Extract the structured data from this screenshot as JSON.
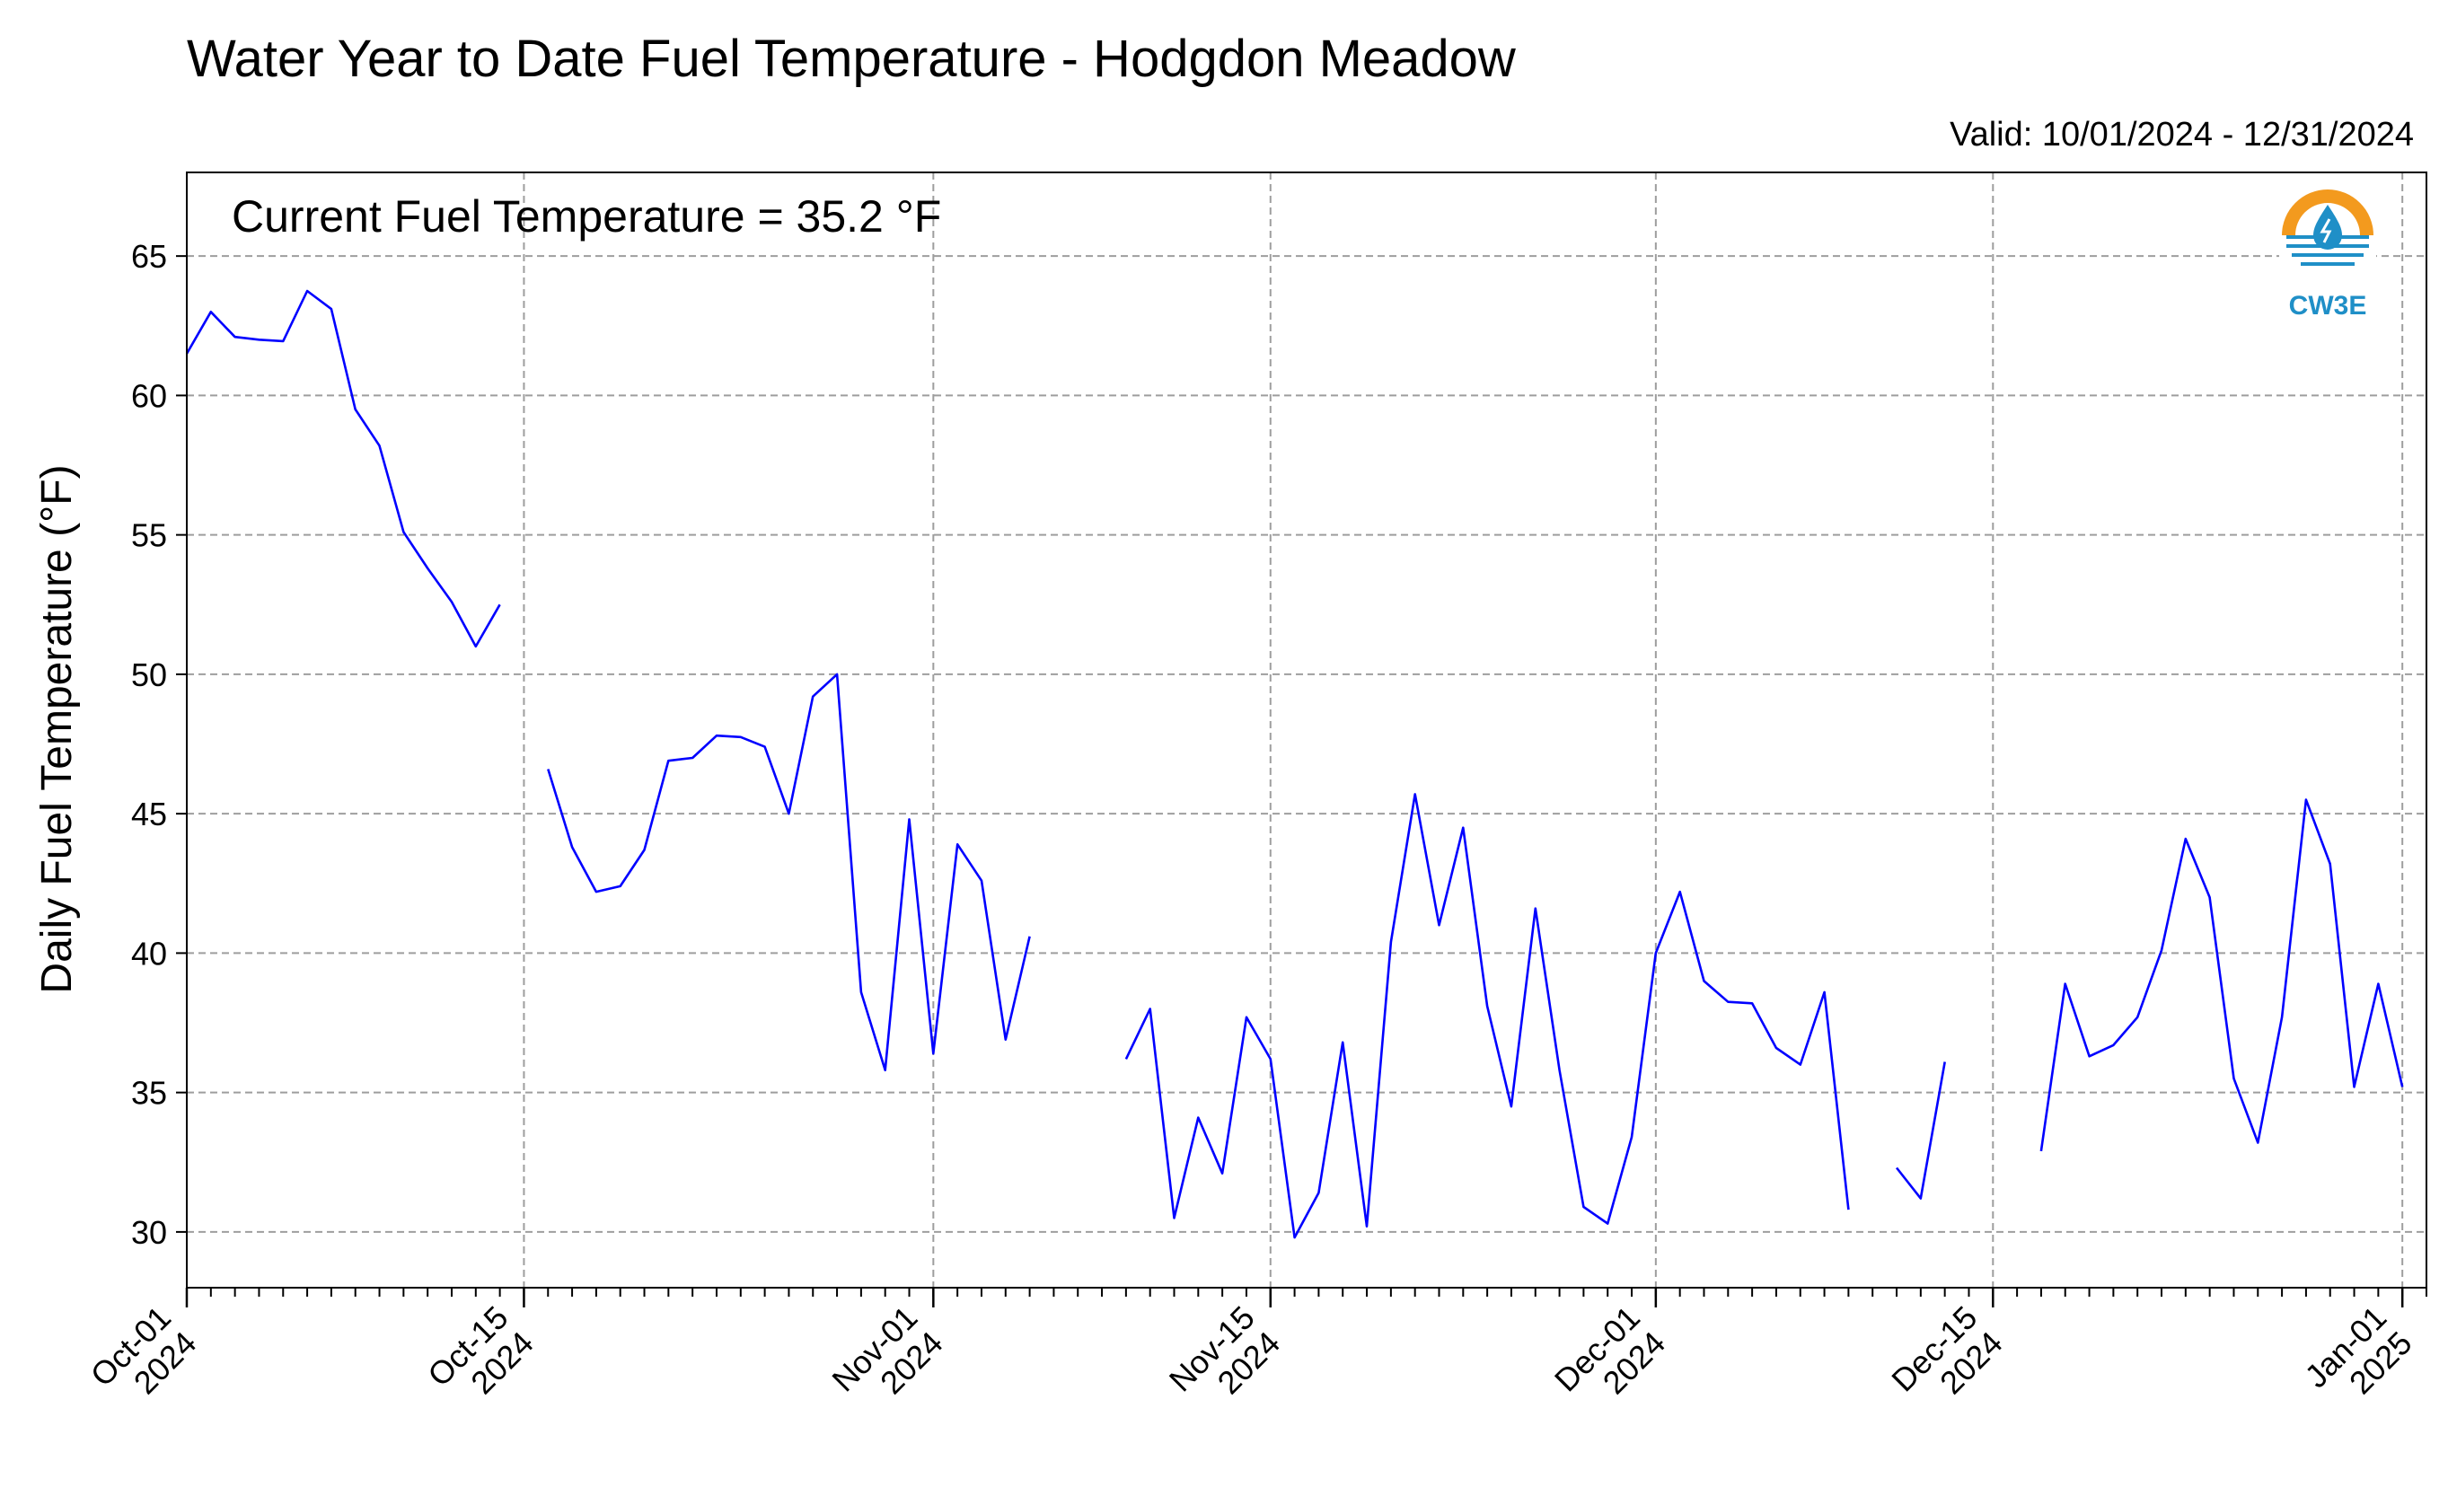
{
  "chart_data": {
    "type": "line",
    "title": "Water Year to Date Fuel Temperature - Hodgdon Meadow",
    "subtitle": "Valid: 10/01/2024 - 12/31/2024",
    "annotation": "Current Fuel Temperature = 35.2 °F",
    "ylabel": "Daily Fuel Temperature (°F)",
    "xlabel": "",
    "ylim": [
      28,
      68
    ],
    "xlim": [
      "2024-10-01",
      "2025-01-02"
    ],
    "y_ticks": [
      30,
      35,
      40,
      45,
      50,
      55,
      60,
      65
    ],
    "x_ticks": [
      {
        "date": "2024-10-01",
        "label": [
          "Oct-01",
          "2024"
        ]
      },
      {
        "date": "2024-10-15",
        "label": [
          "Oct-15",
          "2024"
        ]
      },
      {
        "date": "2024-11-01",
        "label": [
          "Nov-01",
          "2024"
        ]
      },
      {
        "date": "2024-11-15",
        "label": [
          "Nov-15",
          "2024"
        ]
      },
      {
        "date": "2024-12-01",
        "label": [
          "Dec-01",
          "2024"
        ]
      },
      {
        "date": "2024-12-15",
        "label": [
          "Dec-15",
          "2024"
        ]
      },
      {
        "date": "2025-01-01",
        "label": [
          "Jan-01",
          "2025"
        ]
      }
    ],
    "grid": true,
    "logo": "CW3E",
    "colors": {
      "line": "#0000ff",
      "grid": "#9e9e9e",
      "logo_orange": "#f39a1e",
      "logo_blue": "#1f8fc7"
    },
    "series": [
      {
        "color": "#0000ff",
        "points": [
          {
            "x": "2024-10-01",
            "y": 61.5
          },
          {
            "x": "2024-10-02",
            "y": 63.0
          },
          {
            "x": "2024-10-03",
            "y": 62.1
          },
          {
            "x": "2024-10-04",
            "y": 62.0
          },
          {
            "x": "2024-10-05",
            "y": 61.95
          },
          {
            "x": "2024-10-06",
            "y": 63.75
          },
          {
            "x": "2024-10-07",
            "y": 63.1
          },
          {
            "x": "2024-10-08",
            "y": 59.5
          },
          {
            "x": "2024-10-09",
            "y": 58.2
          },
          {
            "x": "2024-10-10",
            "y": 55.1
          },
          {
            "x": "2024-10-11",
            "y": 53.8
          },
          {
            "x": "2024-10-12",
            "y": 52.6
          },
          {
            "x": "2024-10-13",
            "y": 51.0
          },
          {
            "x": "2024-10-14",
            "y": 52.5
          },
          {
            "x": "2024-10-15",
            "y": null
          },
          {
            "x": "2024-10-16",
            "y": 46.6
          },
          {
            "x": "2024-10-17",
            "y": 43.8
          },
          {
            "x": "2024-10-18",
            "y": 42.2
          },
          {
            "x": "2024-10-19",
            "y": 42.4
          },
          {
            "x": "2024-10-20",
            "y": 43.7
          },
          {
            "x": "2024-10-21",
            "y": 46.9
          },
          {
            "x": "2024-10-22",
            "y": 47.0
          },
          {
            "x": "2024-10-23",
            "y": 47.8
          },
          {
            "x": "2024-10-24",
            "y": 47.75
          },
          {
            "x": "2024-10-25",
            "y": 47.4
          },
          {
            "x": "2024-10-26",
            "y": 45.0
          },
          {
            "x": "2024-10-27",
            "y": 49.2
          },
          {
            "x": "2024-10-28",
            "y": 50.0
          },
          {
            "x": "2024-10-29",
            "y": 38.6
          },
          {
            "x": "2024-10-30",
            "y": 35.8
          },
          {
            "x": "2024-10-31",
            "y": 44.8
          },
          {
            "x": "2024-11-01",
            "y": 36.4
          },
          {
            "x": "2024-11-02",
            "y": 43.9
          },
          {
            "x": "2024-11-03",
            "y": 42.6
          },
          {
            "x": "2024-11-04",
            "y": 36.9
          },
          {
            "x": "2024-11-05",
            "y": 40.6
          },
          {
            "x": "2024-11-06",
            "y": null
          },
          {
            "x": "2024-11-07",
            "y": null
          },
          {
            "x": "2024-11-08",
            "y": null
          },
          {
            "x": "2024-11-09",
            "y": 36.2
          },
          {
            "x": "2024-11-10",
            "y": 38.0
          },
          {
            "x": "2024-11-11",
            "y": 30.5
          },
          {
            "x": "2024-11-12",
            "y": 34.1
          },
          {
            "x": "2024-11-13",
            "y": 32.1
          },
          {
            "x": "2024-11-14",
            "y": 37.7
          },
          {
            "x": "2024-11-15",
            "y": 36.2
          },
          {
            "x": "2024-11-16",
            "y": 29.8
          },
          {
            "x": "2024-11-17",
            "y": 31.4
          },
          {
            "x": "2024-11-18",
            "y": 36.8
          },
          {
            "x": "2024-11-19",
            "y": 30.2
          },
          {
            "x": "2024-11-20",
            "y": 40.4
          },
          {
            "x": "2024-11-21",
            "y": 45.7
          },
          {
            "x": "2024-11-22",
            "y": 41.0
          },
          {
            "x": "2024-11-23",
            "y": 44.5
          },
          {
            "x": "2024-11-24",
            "y": 38.1
          },
          {
            "x": "2024-11-25",
            "y": 34.5
          },
          {
            "x": "2024-11-26",
            "y": 41.6
          },
          {
            "x": "2024-11-27",
            "y": 35.8
          },
          {
            "x": "2024-11-28",
            "y": 30.9
          },
          {
            "x": "2024-11-29",
            "y": 30.3
          },
          {
            "x": "2024-11-30",
            "y": 33.4
          },
          {
            "x": "2024-12-01",
            "y": 40.0
          },
          {
            "x": "2024-12-02",
            "y": 42.2
          },
          {
            "x": "2024-12-03",
            "y": 39.0
          },
          {
            "x": "2024-12-04",
            "y": 38.25
          },
          {
            "x": "2024-12-05",
            "y": 38.2
          },
          {
            "x": "2024-12-06",
            "y": 36.6
          },
          {
            "x": "2024-12-07",
            "y": 36.0
          },
          {
            "x": "2024-12-08",
            "y": 38.6
          },
          {
            "x": "2024-12-09",
            "y": 30.8
          },
          {
            "x": "2024-12-10",
            "y": null
          },
          {
            "x": "2024-12-11",
            "y": 32.3
          },
          {
            "x": "2024-12-12",
            "y": 31.2
          },
          {
            "x": "2024-12-13",
            "y": 36.1
          },
          {
            "x": "2024-12-14",
            "y": null
          },
          {
            "x": "2024-12-15",
            "y": null
          },
          {
            "x": "2024-12-16",
            "y": null
          },
          {
            "x": "2024-12-17",
            "y": 32.9
          },
          {
            "x": "2024-12-18",
            "y": 38.9
          },
          {
            "x": "2024-12-19",
            "y": 36.3
          },
          {
            "x": "2024-12-20",
            "y": 36.7
          },
          {
            "x": "2024-12-21",
            "y": 37.7
          },
          {
            "x": "2024-12-22",
            "y": 40.1
          },
          {
            "x": "2024-12-23",
            "y": 44.1
          },
          {
            "x": "2024-12-24",
            "y": 42.0
          },
          {
            "x": "2024-12-25",
            "y": 35.5
          },
          {
            "x": "2024-12-26",
            "y": 33.2
          },
          {
            "x": "2024-12-27",
            "y": 37.7
          },
          {
            "x": "2024-12-28",
            "y": 45.5
          },
          {
            "x": "2024-12-29",
            "y": 43.2
          },
          {
            "x": "2024-12-30",
            "y": 35.2
          },
          {
            "x": "2024-12-31",
            "y": 38.9
          },
          {
            "x": "2025-01-01",
            "y": 35.2
          }
        ]
      }
    ]
  }
}
